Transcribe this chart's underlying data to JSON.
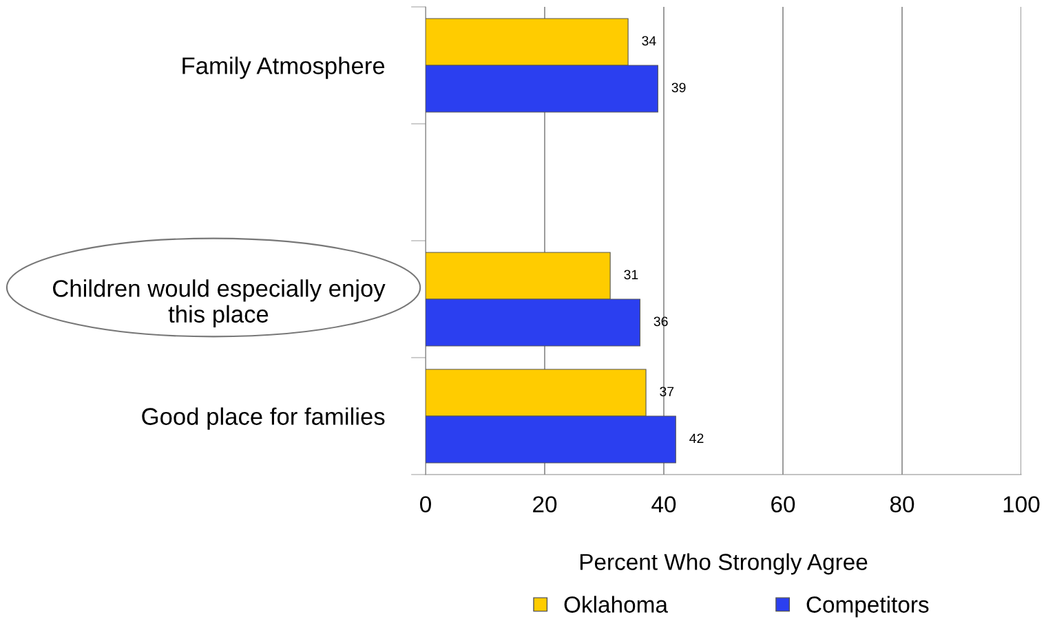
{
  "chart_data": {
    "type": "bar",
    "orientation": "horizontal",
    "categories": [
      "Family Atmosphere",
      null,
      "Children would especially enjoy\nthis place",
      "Good place for families"
    ],
    "series": [
      {
        "name": "Oklahoma",
        "color": "#ffcc00",
        "values": [
          34,
          null,
          31,
          37
        ]
      },
      {
        "name": "Competitors",
        "color": "#2b3ff0",
        "values": [
          39,
          null,
          36,
          42
        ]
      }
    ],
    "xlabel": "Percent Who Strongly Agree",
    "xlim": [
      0,
      100
    ],
    "xticks": [
      0,
      20,
      40,
      60,
      80,
      100
    ],
    "grid": "x",
    "legend": "bottom",
    "data_labels": true
  }
}
